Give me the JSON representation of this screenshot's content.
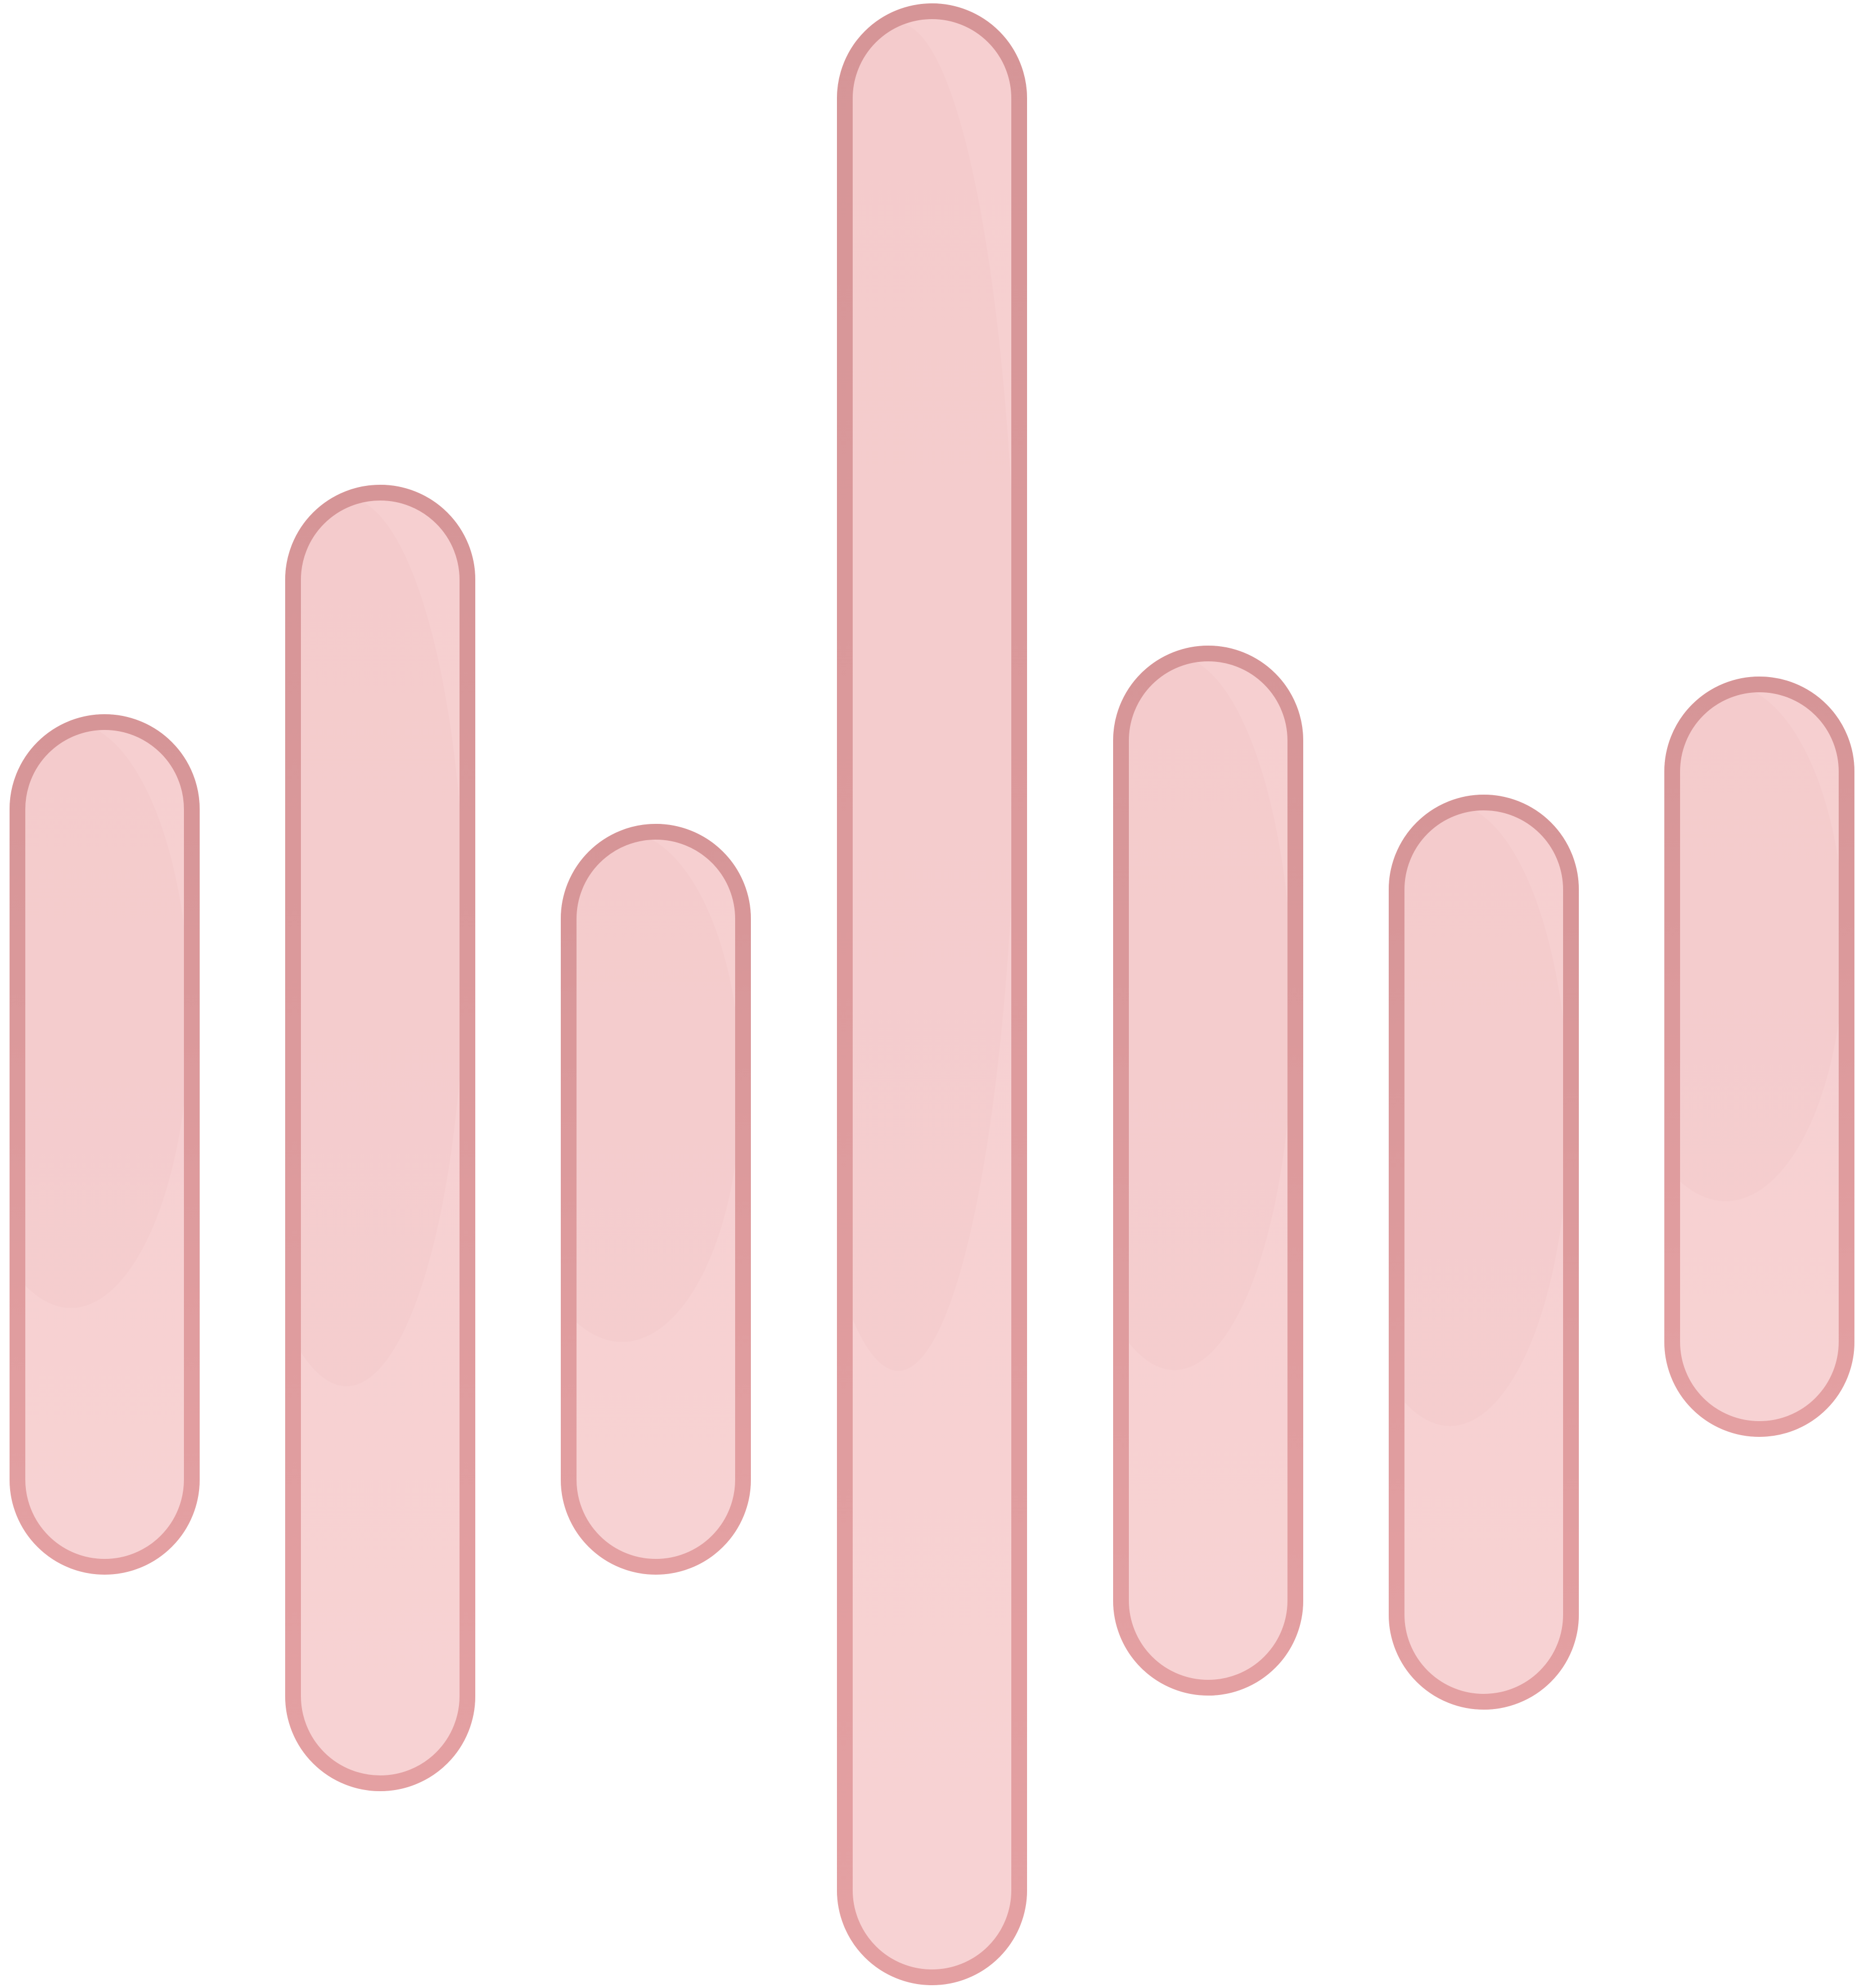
{
  "graphic": {
    "name": "sound-wave-graphic",
    "description_visible_text": "",
    "bar_count": 7,
    "colors": {
      "fill": "#f7d2d3",
      "fill_top": "#f6cfd0",
      "stroke_top": "#d69597",
      "stroke_bottom": "#e4a0a2",
      "shade": "#eebdbf",
      "background": "#ffffff"
    }
  }
}
